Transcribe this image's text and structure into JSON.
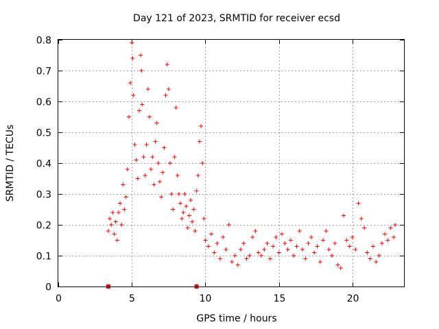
{
  "chart_data": {
    "type": "scatter",
    "title": "Day 121 of 2023, SRMTID for receiver ecsd",
    "xlabel": "GPS time / hours",
    "ylabel": "SRMTID / TECUs",
    "xlim": [
      0,
      23.5
    ],
    "ylim": [
      0,
      0.8
    ],
    "xticks": [
      0,
      5,
      10,
      15,
      20
    ],
    "yticks": [
      0,
      0.1,
      0.2,
      0.3,
      0.4,
      0.5,
      0.6,
      0.7,
      0.8
    ],
    "xtick_labels": [
      "0",
      "5",
      "10",
      "15",
      "20"
    ],
    "ytick_labels": [
      "0",
      "0.1",
      "0.2",
      "0.3",
      "0.4",
      "0.5",
      "0.6",
      "0.7",
      "0.8"
    ],
    "grid": true,
    "marker": "+",
    "color": "#ff0000",
    "series": [
      {
        "name": "SRMTID",
        "points": [
          [
            3.4,
            0.18
          ],
          [
            3.5,
            0.22
          ],
          [
            3.6,
            0.2
          ],
          [
            3.7,
            0.24
          ],
          [
            3.8,
            0.17
          ],
          [
            3.9,
            0.21
          ],
          [
            4.0,
            0.15
          ],
          [
            4.1,
            0.24
          ],
          [
            4.2,
            0.27
          ],
          [
            4.3,
            0.2
          ],
          [
            4.4,
            0.33
          ],
          [
            4.5,
            0.25
          ],
          [
            4.6,
            0.29
          ],
          [
            4.7,
            0.38
          ],
          [
            4.8,
            0.55
          ],
          [
            4.9,
            0.66
          ],
          [
            5.0,
            0.79
          ],
          [
            5.05,
            0.74
          ],
          [
            5.1,
            0.62
          ],
          [
            5.2,
            0.46
          ],
          [
            5.3,
            0.41
          ],
          [
            5.4,
            0.35
          ],
          [
            5.5,
            0.57
          ],
          [
            5.6,
            0.75
          ],
          [
            5.65,
            0.7
          ],
          [
            5.7,
            0.59
          ],
          [
            5.8,
            0.42
          ],
          [
            5.9,
            0.36
          ],
          [
            6.0,
            0.46
          ],
          [
            6.1,
            0.64
          ],
          [
            6.2,
            0.55
          ],
          [
            6.3,
            0.38
          ],
          [
            6.4,
            0.42
          ],
          [
            6.5,
            0.33
          ],
          [
            6.6,
            0.47
          ],
          [
            6.7,
            0.53
          ],
          [
            6.8,
            0.4
          ],
          [
            6.9,
            0.34
          ],
          [
            7.0,
            0.29
          ],
          [
            7.1,
            0.37
          ],
          [
            7.2,
            0.45
          ],
          [
            7.3,
            0.62
          ],
          [
            7.4,
            0.72
          ],
          [
            7.5,
            0.64
          ],
          [
            7.6,
            0.4
          ],
          [
            7.7,
            0.3
          ],
          [
            7.8,
            0.25
          ],
          [
            7.9,
            0.42
          ],
          [
            8.0,
            0.58
          ],
          [
            8.1,
            0.36
          ],
          [
            8.2,
            0.3
          ],
          [
            8.3,
            0.27
          ],
          [
            8.4,
            0.22
          ],
          [
            8.5,
            0.24
          ],
          [
            8.6,
            0.3
          ],
          [
            8.7,
            0.26
          ],
          [
            8.8,
            0.19
          ],
          [
            8.9,
            0.23
          ],
          [
            9.0,
            0.28
          ],
          [
            9.1,
            0.21
          ],
          [
            9.2,
            0.25
          ],
          [
            9.3,
            0.18
          ],
          [
            9.4,
            0.31
          ],
          [
            9.5,
            0.36
          ],
          [
            9.6,
            0.47
          ],
          [
            9.7,
            0.52
          ],
          [
            9.8,
            0.4
          ],
          [
            9.9,
            0.22
          ],
          [
            10.0,
            0.15
          ],
          [
            10.2,
            0.13
          ],
          [
            10.4,
            0.17
          ],
          [
            10.6,
            0.11
          ],
          [
            10.8,
            0.14
          ],
          [
            11.0,
            0.09
          ],
          [
            11.2,
            0.16
          ],
          [
            11.4,
            0.12
          ],
          [
            11.6,
            0.2
          ],
          [
            11.8,
            0.08
          ],
          [
            12.0,
            0.1
          ],
          [
            12.2,
            0.07
          ],
          [
            12.4,
            0.12
          ],
          [
            12.6,
            0.14
          ],
          [
            12.8,
            0.09
          ],
          [
            13.0,
            0.1
          ],
          [
            13.2,
            0.16
          ],
          [
            13.4,
            0.18
          ],
          [
            13.6,
            0.11
          ],
          [
            13.8,
            0.1
          ],
          [
            14.0,
            0.12
          ],
          [
            14.2,
            0.14
          ],
          [
            14.4,
            0.09
          ],
          [
            14.6,
            0.13
          ],
          [
            14.8,
            0.16
          ],
          [
            15.0,
            0.11
          ],
          [
            15.2,
            0.17
          ],
          [
            15.4,
            0.14
          ],
          [
            15.6,
            0.12
          ],
          [
            15.8,
            0.15
          ],
          [
            16.0,
            0.1
          ],
          [
            16.2,
            0.13
          ],
          [
            16.4,
            0.18
          ],
          [
            16.6,
            0.12
          ],
          [
            16.8,
            0.09
          ],
          [
            17.0,
            0.14
          ],
          [
            17.2,
            0.16
          ],
          [
            17.4,
            0.11
          ],
          [
            17.6,
            0.13
          ],
          [
            17.8,
            0.08
          ],
          [
            18.0,
            0.15
          ],
          [
            18.2,
            0.18
          ],
          [
            18.4,
            0.12
          ],
          [
            18.6,
            0.1
          ],
          [
            18.8,
            0.14
          ],
          [
            19.0,
            0.07
          ],
          [
            19.2,
            0.06
          ],
          [
            19.4,
            0.23
          ],
          [
            19.6,
            0.15
          ],
          [
            19.8,
            0.13
          ],
          [
            20.0,
            0.16
          ],
          [
            20.2,
            0.12
          ],
          [
            20.4,
            0.27
          ],
          [
            20.6,
            0.22
          ],
          [
            20.8,
            0.19
          ],
          [
            21.0,
            0.11
          ],
          [
            21.2,
            0.09
          ],
          [
            21.4,
            0.13
          ],
          [
            21.6,
            0.08
          ],
          [
            21.8,
            0.1
          ],
          [
            22.0,
            0.14
          ],
          [
            22.2,
            0.17
          ],
          [
            22.4,
            0.15
          ],
          [
            22.6,
            0.19
          ],
          [
            22.8,
            0.16
          ],
          [
            22.9,
            0.2
          ]
        ]
      }
    ],
    "markers": [
      [
        3.4,
        0.0
      ],
      [
        9.4,
        0.0
      ]
    ]
  }
}
